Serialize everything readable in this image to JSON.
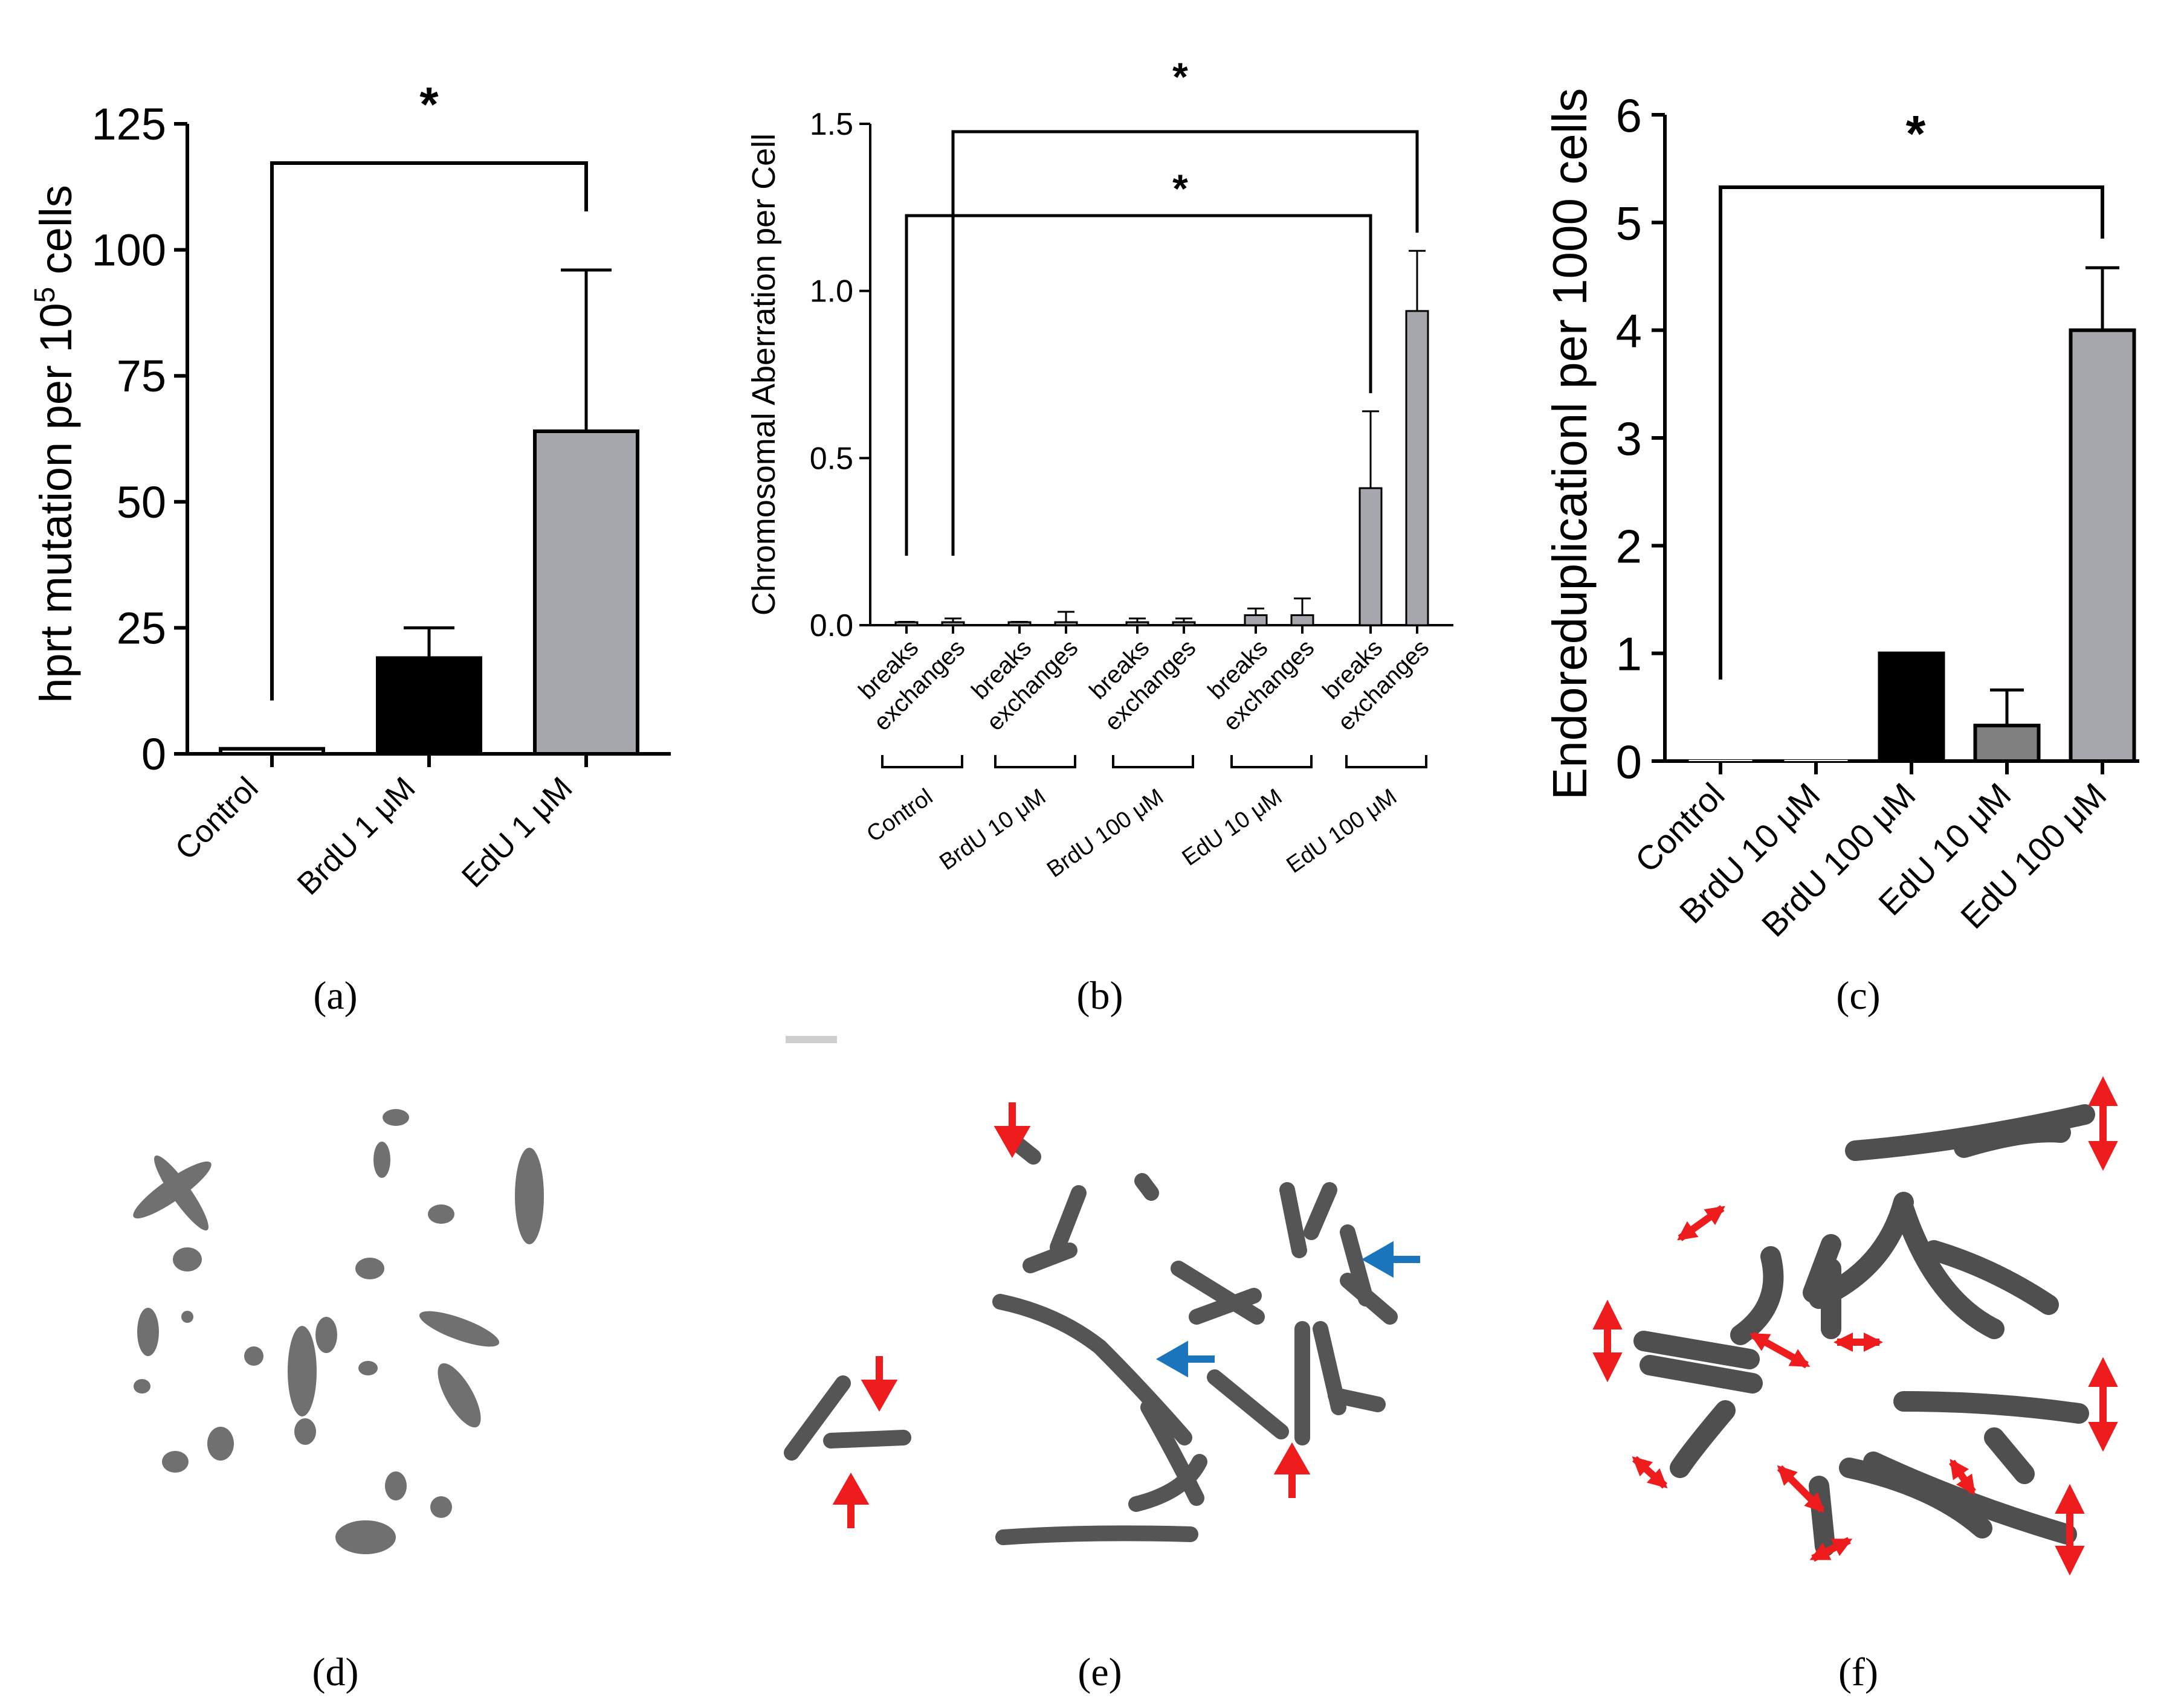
{
  "figure": {
    "panel_labels": [
      "(a)",
      "(b)",
      "(c)",
      "(d)",
      "(e)",
      "(f)"
    ],
    "significance_mark": "*"
  },
  "chart_data": [
    {
      "id": "a",
      "type": "bar",
      "categories": [
        "Control",
        "BrdU 1 μM",
        "EdU 1 μM"
      ],
      "values": [
        1,
        19,
        64
      ],
      "errors": [
        0,
        6,
        32
      ],
      "bar_colors": [
        "#ffffff",
        "#000000",
        "#a6a7ad"
      ],
      "ylabel": "hprt mutation  per 10",
      "ylabel_sup": "5",
      "ylabel_tail": " cells",
      "ylim": [
        0,
        125
      ],
      "yticks": [
        0,
        25,
        50,
        75,
        100,
        125
      ],
      "significance": [
        {
          "from": 0,
          "to": 2,
          "label": "*"
        }
      ],
      "grid": false,
      "legend": "none"
    },
    {
      "id": "b",
      "type": "bar",
      "groups": [
        "Control",
        "BrdU 10 μM",
        "BrdU 100 μM",
        "EdU 10 μM",
        "EdU 100 μM"
      ],
      "categories": [
        "breaks",
        "exchanges",
        "breaks",
        "exchanges",
        "breaks",
        "exchanges",
        "breaks",
        "exchanges",
        "breaks",
        "exchanges"
      ],
      "values": [
        0.0,
        0.0,
        0.0,
        0.0,
        0.0,
        0.0,
        0.03,
        0.03,
        0.41,
        0.94
      ],
      "errors": [
        0.01,
        0.02,
        0.01,
        0.04,
        0.02,
        0.02,
        0.02,
        0.05,
        0.23,
        0.18
      ],
      "bar_color": "#a6a7ad",
      "ylabel": "Chromosomal Aberration per Cell",
      "ylim": [
        0,
        1.5
      ],
      "yticks": [
        0.0,
        0.5,
        1.0,
        1.5
      ],
      "ytick_labels": [
        "0.0",
        "0.5",
        "1.0",
        "1.5"
      ],
      "significance": [
        {
          "from": 1,
          "to": 9,
          "label": "*"
        },
        {
          "from": 0,
          "to": 8,
          "label": "*"
        }
      ],
      "grid": false,
      "legend": "none"
    },
    {
      "id": "c",
      "type": "bar",
      "categories": [
        "Control",
        "BrdU 10 μM",
        "BrdU 100 μM",
        "EdU 10 μM",
        "EdU 100 μM"
      ],
      "values": [
        0,
        0,
        1.0,
        0.33,
        4.0
      ],
      "errors": [
        0,
        0,
        0,
        0.33,
        0.58
      ],
      "bar_colors": [
        "#ffffff",
        "#ffffff",
        "#000000",
        "#808080",
        "#a6a7ad"
      ],
      "ylabel": "Endoreduplicationl per 1000 cells",
      "ylim": [
        0,
        6
      ],
      "yticks": [
        0,
        1,
        2,
        3,
        4,
        5,
        6
      ],
      "significance": [
        {
          "from": 0,
          "to": 4,
          "label": "*"
        }
      ],
      "grid": false,
      "legend": "none"
    }
  ],
  "micrographs": {
    "colors": {
      "chromosome": "#6e6e6e",
      "arrow_red": "#ee1c1c",
      "arrow_blue": "#1b75bc"
    }
  }
}
